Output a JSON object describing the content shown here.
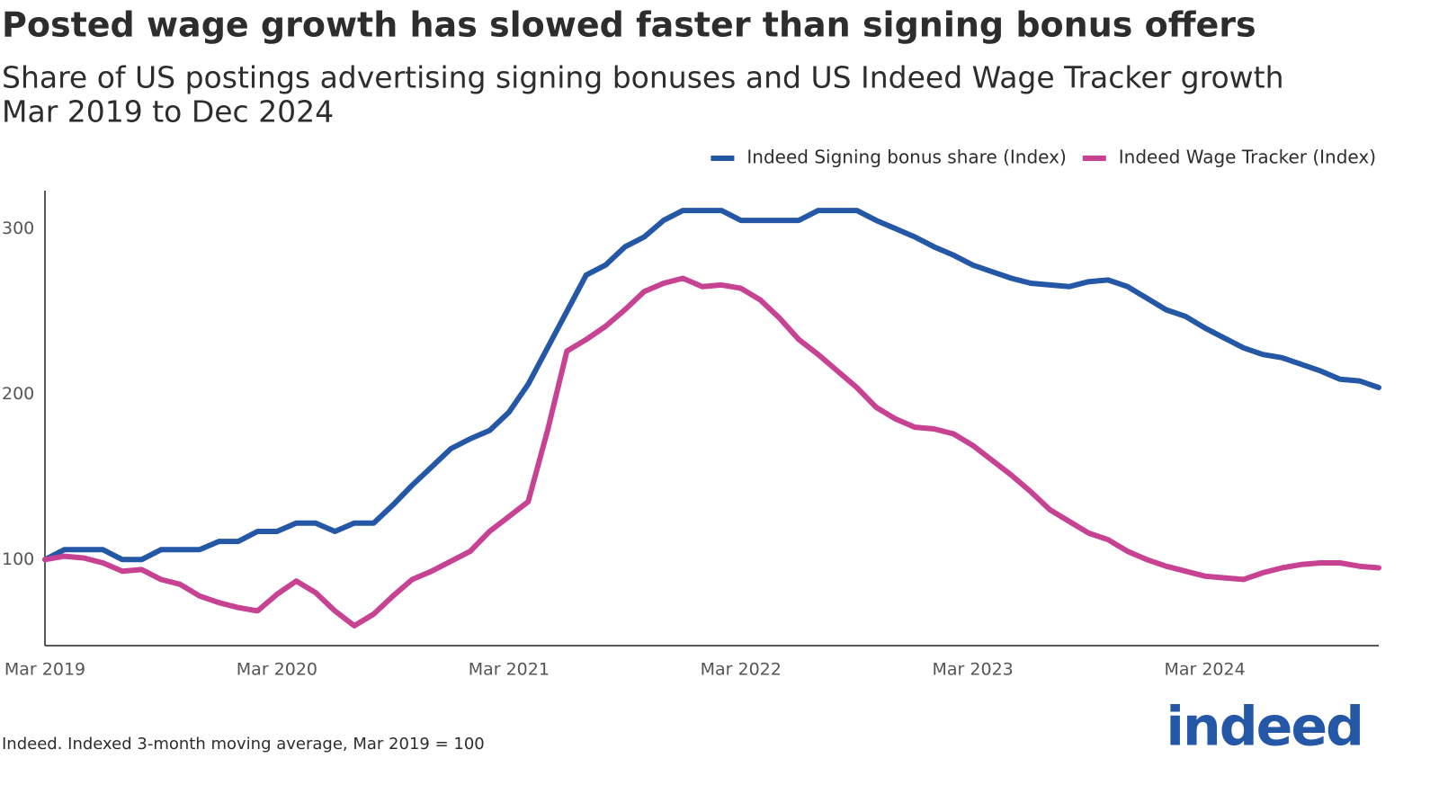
{
  "chart_data": {
    "type": "line",
    "title": "Posted wage growth has slowed faster than signing bonus offers",
    "subtitle": [
      "Share of US postings advertising signing bonuses and US Indeed Wage Tracker growth",
      "Mar 2019 to Dec 2024"
    ],
    "note": "Indeed. Indexed 3-month moving average, Mar 2019 = 100",
    "logo": "indeed",
    "categories": [
      "Mar 2019",
      "Apr 2019",
      "May 2019",
      "Jun 2019",
      "Jul 2019",
      "Aug 2019",
      "Sep 2019",
      "Oct 2019",
      "Nov 2019",
      "Dec 2019",
      "Jan 2020",
      "Feb 2020",
      "Mar 2020",
      "Apr 2020",
      "May 2020",
      "Jun 2020",
      "Jul 2020",
      "Aug 2020",
      "Sep 2020",
      "Oct 2020",
      "Nov 2020",
      "Dec 2020",
      "Jan 2021",
      "Feb 2021",
      "Mar 2021",
      "Apr 2021",
      "May 2021",
      "Jun 2021",
      "Jul 2021",
      "Aug 2021",
      "Sep 2021",
      "Oct 2021",
      "Nov 2021",
      "Dec 2021",
      "Jan 2022",
      "Feb 2022",
      "Mar 2022",
      "Apr 2022",
      "May 2022",
      "Jun 2022",
      "Jul 2022",
      "Aug 2022",
      "Sep 2022",
      "Oct 2022",
      "Nov 2022",
      "Dec 2022",
      "Jan 2023",
      "Feb 2023",
      "Mar 2023",
      "Apr 2023",
      "May 2023",
      "Jun 2023",
      "Jul 2023",
      "Aug 2023",
      "Sep 2023",
      "Oct 2023",
      "Nov 2023",
      "Dec 2023",
      "Jan 2024",
      "Feb 2024",
      "Mar 2024",
      "Apr 2024",
      "May 2024",
      "Jun 2024",
      "Jul 2024",
      "Aug 2024",
      "Sep 2024",
      "Oct 2024",
      "Nov 2024",
      "Dec 2024"
    ],
    "xticks": [
      "Mar 2019",
      "Mar 2020",
      "Mar 2021",
      "Mar 2022",
      "Mar 2023",
      "Mar 2024"
    ],
    "series": [
      {
        "name": "Indeed Signing bonus share (Index)",
        "color": "#2557a7",
        "values": [
          100,
          106,
          106,
          106,
          100,
          100,
          106,
          106,
          106,
          111,
          111,
          117,
          117,
          122,
          122,
          117,
          122,
          122,
          133,
          145,
          156,
          167,
          173,
          178,
          189,
          206,
          228,
          250,
          272,
          278,
          289,
          295,
          305,
          311,
          311,
          311,
          305,
          305,
          305,
          305,
          311,
          311,
          311,
          305,
          300,
          295,
          289,
          284,
          278,
          274,
          270,
          267,
          266,
          265,
          268,
          269,
          265,
          258,
          251,
          247,
          240,
          234,
          228,
          224,
          222,
          218,
          214,
          209,
          208,
          204
        ]
      },
      {
        "name": "Indeed Wage Tracker (Index)",
        "color": "#c74293",
        "values": [
          100,
          102,
          101,
          98,
          93,
          94,
          88,
          85,
          78,
          74,
          71,
          69,
          79,
          87,
          80,
          69,
          60,
          67,
          78,
          88,
          93,
          99,
          105,
          117,
          126,
          135,
          178,
          226,
          233,
          241,
          251,
          262,
          267,
          270,
          265,
          266,
          264,
          257,
          246,
          233,
          224,
          214,
          204,
          192,
          185,
          180,
          179,
          176,
          169,
          160,
          151,
          141,
          130,
          123,
          116,
          112,
          105,
          100,
          96,
          93,
          90,
          89,
          88,
          92,
          95,
          97,
          98,
          98,
          96,
          95
        ]
      }
    ],
    "ylim": [
      48,
      323
    ],
    "yticks": [
      100,
      200,
      300
    ],
    "grid": false,
    "legend": "top-right"
  }
}
